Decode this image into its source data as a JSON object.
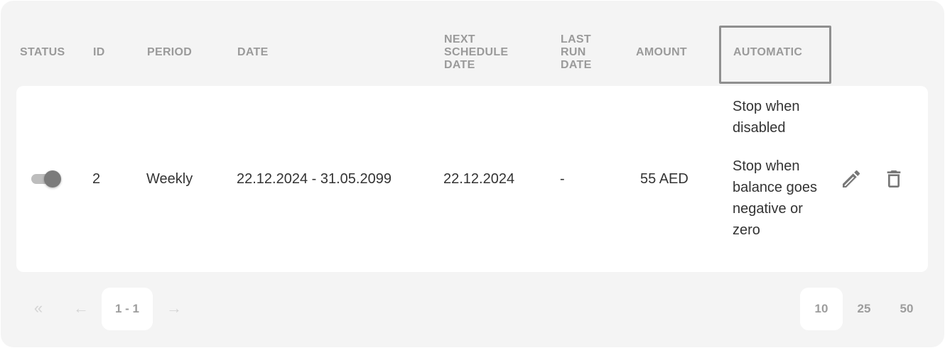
{
  "columns": [
    "STATUS",
    "ID",
    "PERIOD",
    "DATE",
    "NEXT SCHEDULE DATE",
    "LAST RUN DATE",
    "AMOUNT",
    "AUTOMATIC"
  ],
  "columns_lines": {
    "next": [
      "NEXT",
      "SCHEDULE",
      "DATE"
    ],
    "last": [
      "LAST",
      "RUN",
      "DATE"
    ]
  },
  "row": {
    "status_enabled": true,
    "id": "2",
    "period": "Weekly",
    "date": "22.12.2024 - 31.05.2099",
    "next_schedule_date": "22.12.2024",
    "last_run_date": "-",
    "amount": "55 AED",
    "automatic": [
      "Stop when disabled",
      "Stop when balance goes negative or zero"
    ],
    "actions": [
      "pencil-icon",
      "trash-icon"
    ]
  },
  "pagination": {
    "first": "«",
    "prev": "←",
    "range": "1 - 1",
    "next": "→",
    "page_sizes": [
      "10",
      "25",
      "50"
    ],
    "selected_page_size": "10"
  }
}
